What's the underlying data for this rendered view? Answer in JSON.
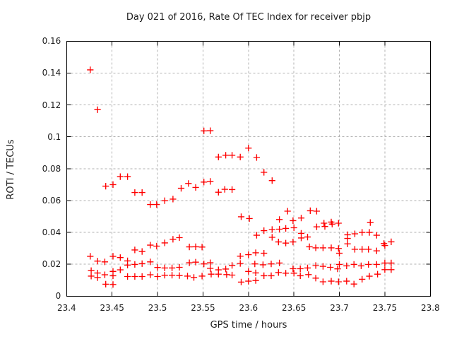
{
  "title": "Day 021 of 2016, Rate Of TEC Index for receiver pbjp",
  "colors": {
    "marker": "#ff0000",
    "border": "#000000",
    "grid": "#b0b0b0",
    "text": "#1c1c1c",
    "background": "#ffffff"
  },
  "chart_data": {
    "type": "scatter",
    "title": "Day 021 of 2016, Rate Of TEC Index for receiver pbjp",
    "xlabel": "GPS time / hours",
    "ylabel": "ROTI / TECUs",
    "xlim": [
      23.4,
      23.8
    ],
    "ylim": [
      0,
      0.16
    ],
    "grid": true,
    "legend_position": "none",
    "marker": "plus",
    "marker_color": "#ff0000",
    "xticks": [
      {
        "value": 23.4,
        "label": "23.4"
      },
      {
        "value": 23.45,
        "label": "23.45"
      },
      {
        "value": 23.5,
        "label": "23.5"
      },
      {
        "value": 23.55,
        "label": "23.55"
      },
      {
        "value": 23.6,
        "label": "23.6"
      },
      {
        "value": 23.65,
        "label": "23.65"
      },
      {
        "value": 23.7,
        "label": "23.7"
      },
      {
        "value": 23.75,
        "label": "23.75"
      },
      {
        "value": 23.8,
        "label": "23.8"
      }
    ],
    "yticks": [
      {
        "value": 0,
        "label": "0"
      },
      {
        "value": 0.02,
        "label": "0.02"
      },
      {
        "value": 0.04,
        "label": "0.04"
      },
      {
        "value": 0.06,
        "label": "0.06"
      },
      {
        "value": 0.08,
        "label": "0.08"
      },
      {
        "value": 0.1,
        "label": "0.1"
      },
      {
        "value": 0.12,
        "label": "0.12"
      },
      {
        "value": 0.14,
        "label": "0.14"
      },
      {
        "value": 0.16,
        "label": "0.16"
      }
    ],
    "series": [
      {
        "name": "ROTI",
        "points": [
          [
            23.426,
            0.142
          ],
          [
            23.426,
            0.025
          ],
          [
            23.427,
            0.016
          ],
          [
            23.427,
            0.0126
          ],
          [
            23.434,
            0.117
          ],
          [
            23.434,
            0.022
          ],
          [
            23.434,
            0.0145
          ],
          [
            23.434,
            0.0116
          ],
          [
            23.442,
            0.0215
          ],
          [
            23.442,
            0.0134
          ],
          [
            23.443,
            0.069
          ],
          [
            23.443,
            0.0075
          ],
          [
            23.451,
            0.07
          ],
          [
            23.451,
            0.025
          ],
          [
            23.451,
            0.0155
          ],
          [
            23.451,
            0.0128
          ],
          [
            23.451,
            0.0073
          ],
          [
            23.459,
            0.075
          ],
          [
            23.459,
            0.0242
          ],
          [
            23.459,
            0.0165
          ],
          [
            23.467,
            0.075
          ],
          [
            23.467,
            0.0221
          ],
          [
            23.467,
            0.0195
          ],
          [
            23.467,
            0.0123
          ],
          [
            23.475,
            0.065
          ],
          [
            23.475,
            0.029
          ],
          [
            23.475,
            0.0199
          ],
          [
            23.475,
            0.0123
          ],
          [
            23.483,
            0.065
          ],
          [
            23.483,
            0.028
          ],
          [
            23.483,
            0.0204
          ],
          [
            23.483,
            0.0123
          ],
          [
            23.492,
            0.0575
          ],
          [
            23.492,
            0.032
          ],
          [
            23.492,
            0.0215
          ],
          [
            23.492,
            0.0134
          ],
          [
            23.499,
            0.0575
          ],
          [
            23.499,
            0.0314
          ],
          [
            23.5,
            0.018
          ],
          [
            23.5,
            0.0123
          ],
          [
            23.508,
            0.0599
          ],
          [
            23.508,
            0.0334
          ],
          [
            23.508,
            0.0177
          ],
          [
            23.508,
            0.0131
          ],
          [
            23.516,
            0.0177
          ],
          [
            23.516,
            0.0131
          ],
          [
            23.517,
            0.0609
          ],
          [
            23.517,
            0.0357
          ],
          [
            23.524,
            0.0367
          ],
          [
            23.524,
            0.0181
          ],
          [
            23.524,
            0.0129
          ],
          [
            23.526,
            0.0677
          ],
          [
            23.533,
            0.0126
          ],
          [
            23.534,
            0.0707
          ],
          [
            23.535,
            0.0309
          ],
          [
            23.535,
            0.0209
          ],
          [
            23.54,
            0.0117
          ],
          [
            23.542,
            0.0682
          ],
          [
            23.542,
            0.031
          ],
          [
            23.542,
            0.0213
          ],
          [
            23.549,
            0.0308
          ],
          [
            23.549,
            0.0126
          ],
          [
            23.551,
            0.1037
          ],
          [
            23.551,
            0.0716
          ],
          [
            23.551,
            0.0202
          ],
          [
            23.558,
            0.1038
          ],
          [
            23.558,
            0.072
          ],
          [
            23.558,
            0.0209
          ],
          [
            23.558,
            0.0174
          ],
          [
            23.559,
            0.0138
          ],
          [
            23.567,
            0.0873
          ],
          [
            23.567,
            0.0652
          ],
          [
            23.567,
            0.0165
          ],
          [
            23.567,
            0.0138
          ],
          [
            23.574,
            0.067
          ],
          [
            23.575,
            0.0884
          ],
          [
            23.575,
            0.017
          ],
          [
            23.576,
            0.0135
          ],
          [
            23.582,
            0.0884
          ],
          [
            23.582,
            0.0669
          ],
          [
            23.582,
            0.0193
          ],
          [
            23.582,
            0.0132
          ],
          [
            23.591,
            0.0873
          ],
          [
            23.591,
            0.0251
          ],
          [
            23.591,
            0.0205
          ],
          [
            23.592,
            0.0498
          ],
          [
            23.592,
            0.0088
          ],
          [
            23.6,
            0.0929
          ],
          [
            23.6,
            0.026
          ],
          [
            23.6,
            0.0155
          ],
          [
            23.6,
            0.0094
          ],
          [
            23.601,
            0.0487
          ],
          [
            23.607,
            0.0202
          ],
          [
            23.608,
            0.0272
          ],
          [
            23.608,
            0.0146
          ],
          [
            23.608,
            0.0098
          ],
          [
            23.609,
            0.087
          ],
          [
            23.609,
            0.0382
          ],
          [
            23.616,
            0.0197
          ],
          [
            23.617,
            0.0777
          ],
          [
            23.617,
            0.0411
          ],
          [
            23.617,
            0.0269
          ],
          [
            23.617,
            0.0128
          ],
          [
            23.625,
            0.0202
          ],
          [
            23.625,
            0.0128
          ],
          [
            23.626,
            0.0725
          ],
          [
            23.626,
            0.0418
          ],
          [
            23.626,
            0.0369
          ],
          [
            23.633,
            0.034
          ],
          [
            23.633,
            0.0148
          ],
          [
            23.634,
            0.0481
          ],
          [
            23.634,
            0.042
          ],
          [
            23.634,
            0.0208
          ],
          [
            23.641,
            0.0425
          ],
          [
            23.641,
            0.0333
          ],
          [
            23.641,
            0.0144
          ],
          [
            23.643,
            0.0533
          ],
          [
            23.649,
            0.0474
          ],
          [
            23.649,
            0.034
          ],
          [
            23.649,
            0.0172
          ],
          [
            23.65,
            0.0429
          ],
          [
            23.65,
            0.0144
          ],
          [
            23.657,
            0.0172
          ],
          [
            23.657,
            0.0128
          ],
          [
            23.658,
            0.049
          ],
          [
            23.658,
            0.0394
          ],
          [
            23.658,
            0.0365
          ],
          [
            23.665,
            0.0371
          ],
          [
            23.665,
            0.0177
          ],
          [
            23.666,
            0.0135
          ],
          [
            23.667,
            0.031
          ],
          [
            23.668,
            0.0536
          ],
          [
            23.674,
            0.0303
          ],
          [
            23.674,
            0.0192
          ],
          [
            23.674,
            0.0113
          ],
          [
            23.675,
            0.0533
          ],
          [
            23.675,
            0.0435
          ],
          [
            23.682,
            0.0303
          ],
          [
            23.682,
            0.0187
          ],
          [
            23.682,
            0.009
          ],
          [
            23.683,
            0.0458
          ],
          [
            23.684,
            0.0437
          ],
          [
            23.69,
            0.0181
          ],
          [
            23.691,
            0.0465
          ],
          [
            23.691,
            0.0303
          ],
          [
            23.691,
            0.0094
          ],
          [
            23.692,
            0.0452
          ],
          [
            23.698,
            0.0171
          ],
          [
            23.699,
            0.0458
          ],
          [
            23.699,
            0.0299
          ],
          [
            23.699,
            0.009
          ],
          [
            23.7,
            0.0269
          ],
          [
            23.7,
            0.0199
          ],
          [
            23.708,
            0.019
          ],
          [
            23.708,
            0.0094
          ],
          [
            23.709,
            0.0385
          ],
          [
            23.709,
            0.0362
          ],
          [
            23.709,
            0.0328
          ],
          [
            23.716,
            0.0199
          ],
          [
            23.716,
            0.0076
          ],
          [
            23.717,
            0.0391
          ],
          [
            23.717,
            0.0294
          ],
          [
            23.724,
            0.019
          ],
          [
            23.725,
            0.04
          ],
          [
            23.725,
            0.0294
          ],
          [
            23.725,
            0.0106
          ],
          [
            23.732,
            0.0294
          ],
          [
            23.732,
            0.0199
          ],
          [
            23.733,
            0.04
          ],
          [
            23.733,
            0.0125
          ],
          [
            23.734,
            0.0462
          ],
          [
            23.741,
            0.0382
          ],
          [
            23.741,
            0.0284
          ],
          [
            23.741,
            0.0199
          ],
          [
            23.742,
            0.0138
          ],
          [
            23.749,
            0.033
          ],
          [
            23.75,
            0.0318
          ],
          [
            23.75,
            0.0208
          ],
          [
            23.75,
            0.0166
          ],
          [
            23.757,
            0.0341
          ],
          [
            23.757,
            0.0208
          ],
          [
            23.757,
            0.0166
          ]
        ]
      }
    ]
  }
}
